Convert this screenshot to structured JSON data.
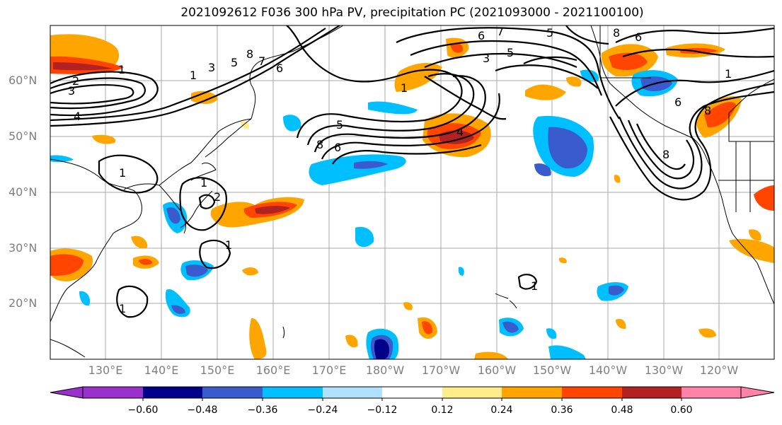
{
  "title": "2021092612 F036 300 hPa PV, precipitation PC (2021093000 - 2021100100)",
  "lat_labels": [
    "60°N",
    "50°N",
    "40°N",
    "30°N",
    "20°N"
  ],
  "lon_labels": [
    "130°E",
    "140°E",
    "150°E",
    "160°E",
    "170°E",
    "180°W",
    "170°W",
    "160°W",
    "150°W",
    "140°W",
    "130°W",
    "120°W"
  ],
  "colorbar": {
    "ticks": [
      "−0.60",
      "−0.48",
      "−0.36",
      "−0.24",
      "−0.12",
      "0.12",
      "0.24",
      "0.36",
      "0.48",
      "0.60"
    ],
    "colors": [
      "#9932cc",
      "#00008b",
      "#3a5bcd",
      "#00bfff",
      "#b0e2ff",
      "#ffffff",
      "#ffec8b",
      "#ffa500",
      "#ff4500",
      "#b22222",
      "#ff82ab"
    ]
  },
  "contour_labels": [
    "1",
    "2",
    "3",
    "4",
    "5",
    "6",
    "7",
    "8"
  ]
}
